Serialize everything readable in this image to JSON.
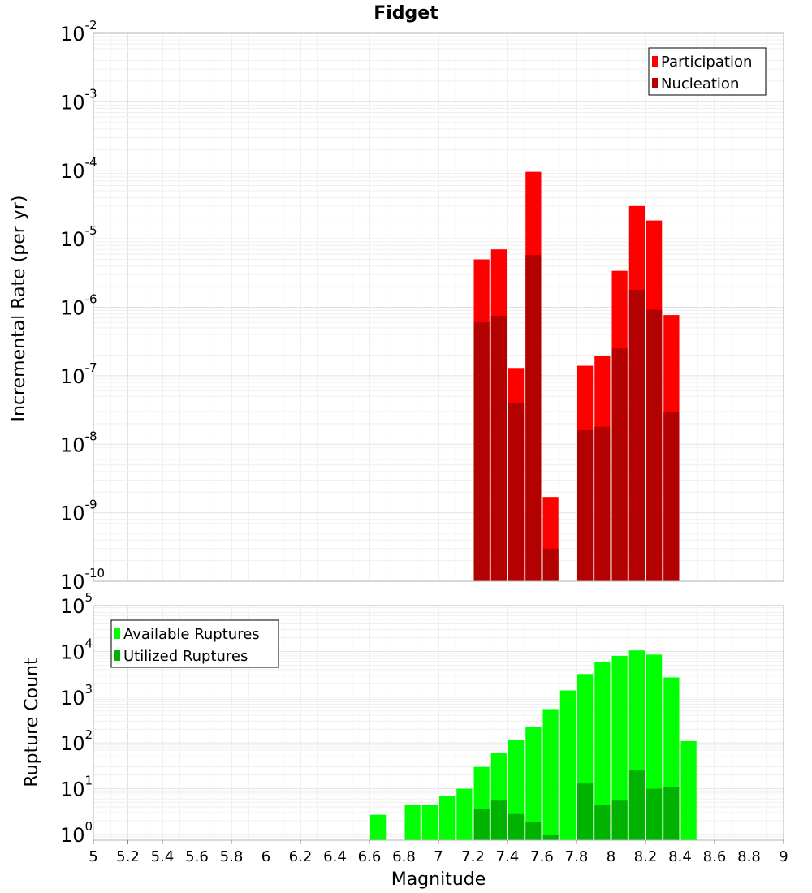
{
  "chart_data": [
    {
      "type": "bar",
      "title": "Fidget",
      "xlabel": "",
      "ylabel": "Incremental Rate (per yr)",
      "y_scale": "log",
      "ylim": [
        1e-10,
        0.01
      ],
      "y_ticks": [
        {
          "base": "10",
          "exp": "-2"
        },
        {
          "base": "10",
          "exp": "-3"
        },
        {
          "base": "10",
          "exp": "-4"
        },
        {
          "base": "10",
          "exp": "-5"
        },
        {
          "base": "10",
          "exp": "-6"
        },
        {
          "base": "10",
          "exp": "-7"
        },
        {
          "base": "10",
          "exp": "-8"
        },
        {
          "base": "10",
          "exp": "-9"
        },
        {
          "base": "10",
          "exp": "-10"
        }
      ],
      "xlim": [
        5,
        9
      ],
      "bar_width": 0.1,
      "grid": true,
      "legend_position": "top-right",
      "x": [
        7.25,
        7.35,
        7.45,
        7.55,
        7.65,
        7.85,
        7.95,
        8.05,
        8.15,
        8.25,
        8.35
      ],
      "series": [
        {
          "name": "Participation",
          "color": "#ff0000",
          "values": [
            5e-06,
            7e-06,
            1.3e-07,
            9.5e-05,
            1.7e-09,
            1.4e-07,
            1.95e-07,
            3.4e-06,
            3e-05,
            1.85e-05,
            7.7e-07
          ]
        },
        {
          "name": "Nucleation",
          "color": "#b30000",
          "values": [
            6e-07,
            7.5e-07,
            4e-08,
            5.8e-06,
            3e-10,
            1.6e-08,
            1.8e-08,
            2.5e-07,
            1.8e-06,
            9.2e-07,
            3e-08
          ]
        }
      ]
    },
    {
      "type": "bar",
      "title": "",
      "xlabel": "Magnitude",
      "ylabel": "Rupture Count",
      "y_scale": "log",
      "ylim": [
        0.75,
        100000.0
      ],
      "y_ticks": [
        {
          "base": "10",
          "exp": "5"
        },
        {
          "base": "10",
          "exp": "4"
        },
        {
          "base": "10",
          "exp": "3"
        },
        {
          "base": "10",
          "exp": "2"
        },
        {
          "base": "10",
          "exp": "1"
        },
        {
          "base": "10",
          "exp": "0"
        }
      ],
      "xlim": [
        5,
        9
      ],
      "x_ticks": [
        "5",
        "5.2",
        "5.4",
        "5.6",
        "5.8",
        "6",
        "6.2",
        "6.4",
        "6.6",
        "6.8",
        "7",
        "7.2",
        "7.4",
        "7.6",
        "7.8",
        "8",
        "8.2",
        "8.4",
        "8.6",
        "8.8",
        "9"
      ],
      "bar_width": 0.1,
      "grid": true,
      "legend_position": "top-left",
      "x": [
        6.65,
        6.85,
        6.95,
        7.05,
        7.15,
        7.25,
        7.35,
        7.45,
        7.55,
        7.65,
        7.75,
        7.85,
        7.95,
        8.05,
        8.15,
        8.25,
        8.35,
        8.45
      ],
      "series": [
        {
          "name": "Available Ruptures",
          "color": "#00ff00",
          "values": [
            2.7,
            4.5,
            4.5,
            7,
            10,
            30,
            60,
            115,
            220,
            550,
            1400,
            3200,
            5800,
            8000,
            10500,
            8500,
            2700,
            110
          ]
        },
        {
          "name": "Utilized Ruptures",
          "color": "#00b300",
          "values": [
            null,
            null,
            null,
            null,
            null,
            3.6,
            5.5,
            2.8,
            1.9,
            1.0,
            null,
            13,
            4.5,
            5.5,
            25,
            10,
            11,
            null
          ]
        }
      ]
    }
  ]
}
